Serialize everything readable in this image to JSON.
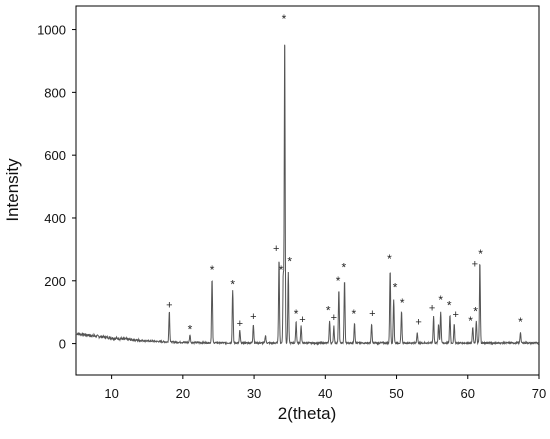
{
  "chart_data": {
    "type": "line",
    "title": "",
    "xlabel": "2(theta)",
    "ylabel": "Intensity",
    "xlim": [
      5,
      70
    ],
    "ylim": [
      -100,
      1075
    ],
    "xticks": [
      "10",
      "20",
      "30",
      "40",
      "50",
      "60",
      "70"
    ],
    "yticks": [
      "0",
      "200",
      "400",
      "600",
      "800",
      "1000"
    ],
    "grid": false,
    "line_color": "#555555",
    "baseline": [
      [
        5,
        32
      ],
      [
        7,
        26
      ],
      [
        10,
        18
      ],
      [
        14,
        10
      ],
      [
        18,
        5
      ],
      [
        22,
        3
      ],
      [
        28,
        2
      ],
      [
        40,
        2
      ],
      [
        55,
        2
      ],
      [
        70,
        2
      ]
    ],
    "peaks": [
      {
        "x": 18.1,
        "y": 100
      },
      {
        "x": 21.0,
        "y": 25
      },
      {
        "x": 24.1,
        "y": 205
      },
      {
        "x": 27.0,
        "y": 170
      },
      {
        "x": 28.0,
        "y": 40
      },
      {
        "x": 29.9,
        "y": 60
      },
      {
        "x": 31.6,
        "y": 25
      },
      {
        "x": 33.5,
        "y": 270
      },
      {
        "x": 34.1,
        "y": 220
      },
      {
        "x": 34.3,
        "y": 995
      },
      {
        "x": 34.8,
        "y": 225
      },
      {
        "x": 35.9,
        "y": 70
      },
      {
        "x": 36.6,
        "y": 55
      },
      {
        "x": 40.6,
        "y": 70
      },
      {
        "x": 41.2,
        "y": 55
      },
      {
        "x": 41.9,
        "y": 170
      },
      {
        "x": 42.7,
        "y": 200
      },
      {
        "x": 44.1,
        "y": 65
      },
      {
        "x": 46.5,
        "y": 60
      },
      {
        "x": 49.1,
        "y": 235
      },
      {
        "x": 49.6,
        "y": 140
      },
      {
        "x": 50.7,
        "y": 100
      },
      {
        "x": 52.9,
        "y": 35
      },
      {
        "x": 55.2,
        "y": 85
      },
      {
        "x": 55.9,
        "y": 60
      },
      {
        "x": 56.2,
        "y": 100
      },
      {
        "x": 57.5,
        "y": 90
      },
      {
        "x": 58.1,
        "y": 60
      },
      {
        "x": 60.7,
        "y": 50
      },
      {
        "x": 61.2,
        "y": 70
      },
      {
        "x": 61.7,
        "y": 260
      },
      {
        "x": 67.4,
        "y": 35
      }
    ],
    "annotations": [
      {
        "symbol": "*",
        "x": 34.2,
        "y": 1040
      },
      {
        "symbol": "+",
        "x": 18.1,
        "y": 125
      },
      {
        "symbol": "*",
        "x": 21.0,
        "y": 52
      },
      {
        "symbol": "*",
        "x": 24.1,
        "y": 240
      },
      {
        "symbol": "*",
        "x": 27.0,
        "y": 195
      },
      {
        "symbol": "+",
        "x": 28.0,
        "y": 66
      },
      {
        "symbol": "+",
        "x": 29.9,
        "y": 88
      },
      {
        "symbol": "+",
        "x": 33.1,
        "y": 305
      },
      {
        "symbol": "*",
        "x": 33.8,
        "y": 240
      },
      {
        "symbol": "*",
        "x": 35.0,
        "y": 268
      },
      {
        "symbol": "*",
        "x": 35.9,
        "y": 100
      },
      {
        "symbol": "+",
        "x": 36.8,
        "y": 78
      },
      {
        "symbol": "*",
        "x": 40.4,
        "y": 112
      },
      {
        "symbol": "+",
        "x": 41.2,
        "y": 84
      },
      {
        "symbol": "*",
        "x": 41.8,
        "y": 205
      },
      {
        "symbol": "*",
        "x": 42.6,
        "y": 248
      },
      {
        "symbol": "*",
        "x": 44.0,
        "y": 100
      },
      {
        "symbol": "+",
        "x": 46.6,
        "y": 98
      },
      {
        "symbol": "*",
        "x": 49.0,
        "y": 275
      },
      {
        "symbol": "*",
        "x": 49.8,
        "y": 185
      },
      {
        "symbol": "*",
        "x": 50.8,
        "y": 135
      },
      {
        "symbol": "+",
        "x": 53.1,
        "y": 70
      },
      {
        "symbol": "+",
        "x": 55.0,
        "y": 115
      },
      {
        "symbol": "*",
        "x": 56.2,
        "y": 145
      },
      {
        "symbol": "*",
        "x": 57.4,
        "y": 128
      },
      {
        "symbol": "+",
        "x": 58.3,
        "y": 95
      },
      {
        "symbol": "*",
        "x": 60.4,
        "y": 78
      },
      {
        "symbol": "+",
        "x": 61.0,
        "y": 255
      },
      {
        "symbol": "*",
        "x": 61.1,
        "y": 108
      },
      {
        "symbol": "*",
        "x": 61.8,
        "y": 292
      },
      {
        "symbol": "*",
        "x": 67.4,
        "y": 75
      }
    ]
  }
}
